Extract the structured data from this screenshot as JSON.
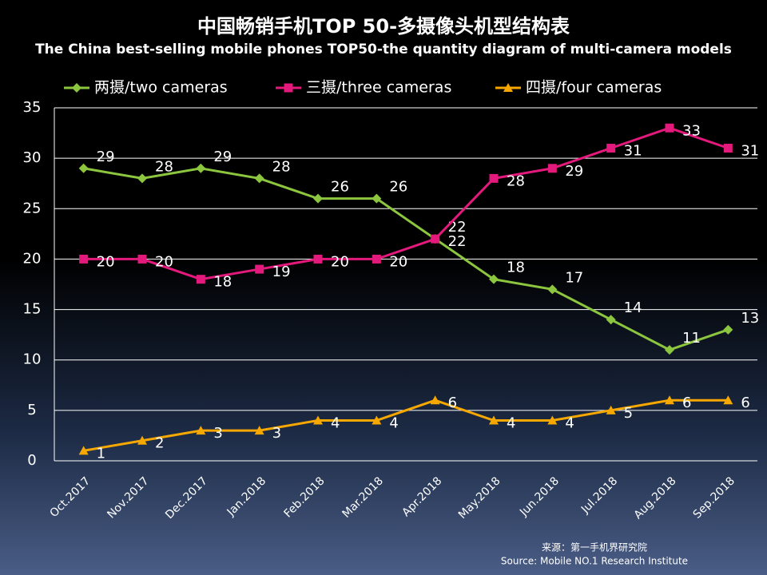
{
  "chart_data": {
    "type": "line",
    "title": "中国畅销手机TOP 50-多摄像头机型结构表",
    "subtitle": "The China best-selling mobile phones TOP50-the quantity diagram of multi-camera models",
    "categories": [
      "Oct.2017",
      "Nov.2017",
      "Dec.2017",
      "Jan.2018",
      "Feb.2018",
      "Mar.2018",
      "Apr.2018",
      "May.2018",
      "Jun.2018",
      "Jul.2018",
      "Aug.2018",
      "Sep.2018"
    ],
    "series": [
      {
        "name": "两摄/two cameras",
        "color": "#8cc63f",
        "marker": "diamond",
        "values": [
          29,
          28,
          29,
          28,
          26,
          26,
          22,
          18,
          17,
          14,
          11,
          13
        ]
      },
      {
        "name": "三摄/three cameras",
        "color": "#e3197b",
        "marker": "square",
        "values": [
          20,
          20,
          18,
          19,
          20,
          20,
          22,
          28,
          29,
          31,
          33,
          31
        ]
      },
      {
        "name": "四摄/four cameras",
        "color": "#f7a800",
        "marker": "triangle",
        "values": [
          1,
          2,
          3,
          3,
          4,
          4,
          6,
          4,
          4,
          5,
          6,
          6
        ]
      }
    ],
    "ylim": [
      0,
      35
    ],
    "yticks": [
      0,
      5,
      10,
      15,
      20,
      25,
      30,
      35
    ],
    "grid": true,
    "legend": "top",
    "data_labels": true,
    "source": [
      "来源：第一手机界研究院",
      "Source: Mobile NO.1 Research Institute"
    ]
  }
}
